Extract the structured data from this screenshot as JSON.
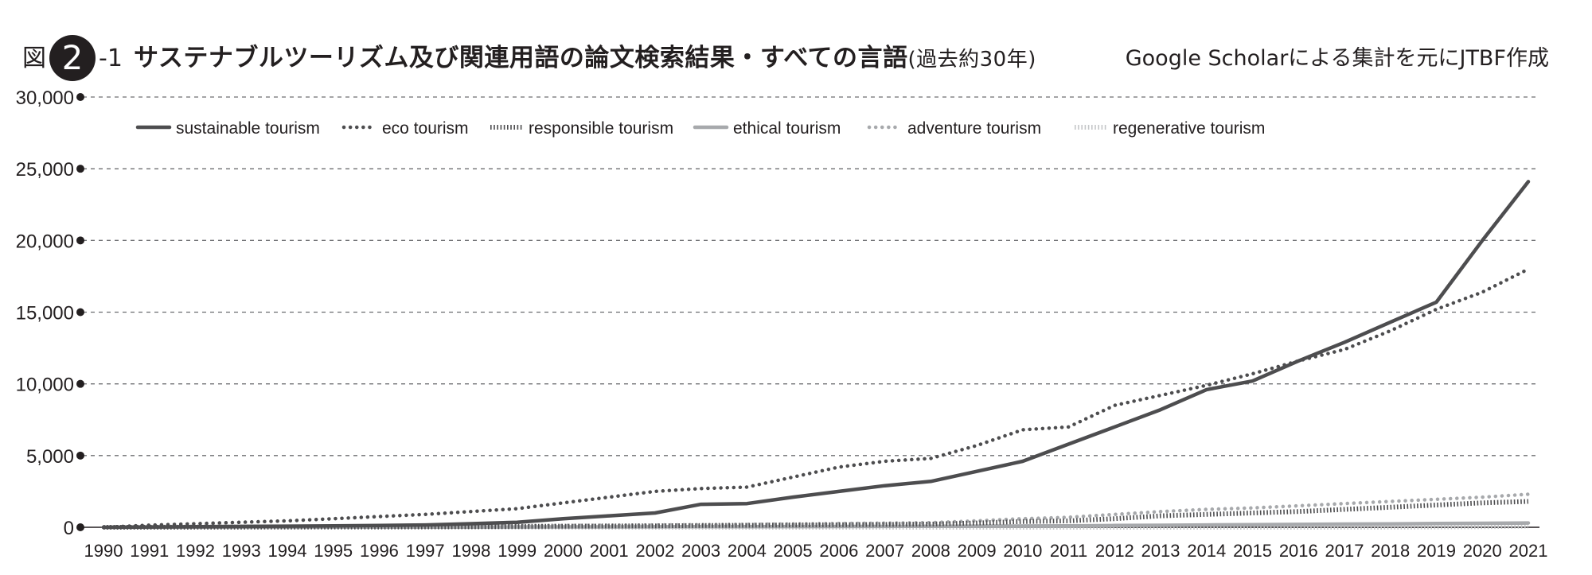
{
  "figure": {
    "prefix": "図",
    "number": "2",
    "suffix": "-1",
    "title": "サステナブルツーリズム及び関連用語の論文検索結果・すべての言語",
    "title_paren": "(過去約30年)",
    "source": "Google Scholarによる集計を元にJTBF作成"
  },
  "chart_data": {
    "type": "line",
    "title": "サステナブルツーリズム及び関連用語の論文検索結果・すべての言語(過去約30年)",
    "xlabel": "",
    "ylabel": "",
    "ylim": [
      0,
      30000
    ],
    "yticks": [
      0,
      5000,
      10000,
      15000,
      20000,
      25000,
      30000
    ],
    "ytick_labels": [
      "0",
      "5,000",
      "10,000",
      "15,000",
      "20,000",
      "25,000",
      "30,000"
    ],
    "grid": true,
    "legend_position": "top-left",
    "x": [
      "1990",
      "1991",
      "1992",
      "1993",
      "1994",
      "1995",
      "1996",
      "1997",
      "1998",
      "1999",
      "2000",
      "2001",
      "2002",
      "2003",
      "2004",
      "2005",
      "2006",
      "2007",
      "2008",
      "2009",
      "2010",
      "2011",
      "2012",
      "2013",
      "2014",
      "2015",
      "2016",
      "2017",
      "2018",
      "2019",
      "2020",
      "2021"
    ],
    "series": [
      {
        "name": "sustainable tourism",
        "style": "solid",
        "color": "#4d4d4f",
        "values": [
          0,
          20,
          40,
          60,
          80,
          100,
          120,
          160,
          250,
          350,
          600,
          800,
          1000,
          1600,
          1650,
          2100,
          2500,
          2900,
          3200,
          3900,
          4600,
          5800,
          7000,
          8200,
          9600,
          10200,
          11600,
          12900,
          14300,
          15700,
          20000,
          24100
        ]
      },
      {
        "name": "eco tourism",
        "style": "dotted",
        "color": "#4d4d4f",
        "values": [
          0,
          150,
          250,
          350,
          450,
          600,
          750,
          900,
          1100,
          1300,
          1700,
          2100,
          2500,
          2700,
          2800,
          3500,
          4200,
          4600,
          4800,
          5700,
          6800,
          7000,
          8500,
          9200,
          9900,
          10700,
          11600,
          12400,
          13700,
          15200,
          16400,
          18000
        ]
      },
      {
        "name": "responsible tourism",
        "style": "hatch",
        "color": "#4d4d4f",
        "values": [
          0,
          5,
          10,
          15,
          20,
          25,
          30,
          40,
          50,
          60,
          80,
          90,
          100,
          120,
          140,
          160,
          180,
          200,
          220,
          300,
          400,
          450,
          600,
          800,
          900,
          1000,
          1100,
          1250,
          1400,
          1550,
          1700,
          1800
        ]
      },
      {
        "name": "ethical tourism",
        "style": "solid-light",
        "color": "#a7a9ac",
        "values": [
          0,
          2,
          4,
          6,
          8,
          10,
          12,
          15,
          18,
          20,
          25,
          30,
          35,
          40,
          45,
          50,
          55,
          60,
          70,
          80,
          90,
          100,
          120,
          140,
          160,
          180,
          200,
          220,
          240,
          260,
          280,
          300
        ]
      },
      {
        "name": "adventure tourism",
        "style": "dotted-light",
        "color": "#a7a9ac",
        "values": [
          0,
          10,
          20,
          30,
          40,
          50,
          60,
          70,
          80,
          100,
          120,
          140,
          160,
          180,
          200,
          230,
          260,
          290,
          320,
          450,
          600,
          700,
          900,
          1100,
          1250,
          1350,
          1500,
          1650,
          1800,
          1950,
          2100,
          2300
        ]
      },
      {
        "name": "regenerative tourism",
        "style": "hatch-light",
        "color": "#c4c6c8",
        "values": [
          0,
          0,
          0,
          0,
          0,
          0,
          0,
          0,
          0,
          0,
          0,
          0,
          0,
          0,
          0,
          0,
          0,
          0,
          0,
          0,
          0,
          0,
          0,
          0,
          0,
          0,
          0,
          5,
          10,
          20,
          40,
          80
        ]
      }
    ]
  }
}
